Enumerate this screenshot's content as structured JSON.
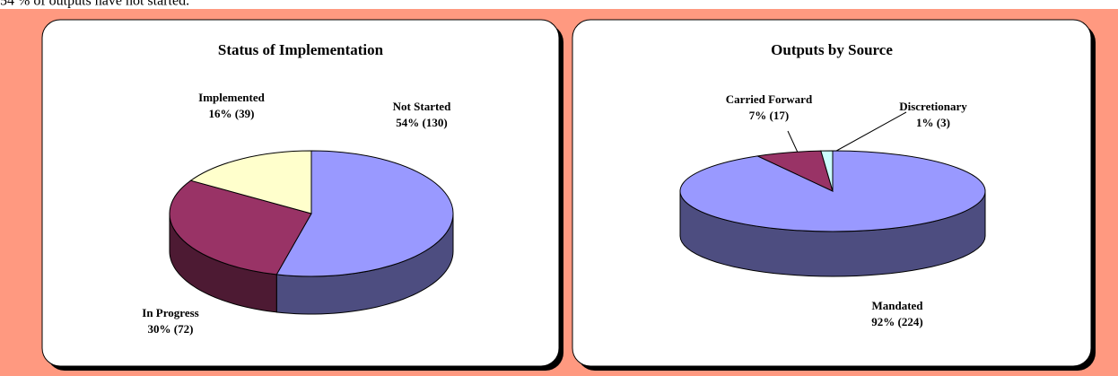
{
  "caption": "54 % of outputs have not started.",
  "chart_data": [
    {
      "type": "pie3d",
      "title": "Status of Implementation",
      "categories": [
        "Not Started",
        "In Progress",
        "Implemented"
      ],
      "values": [
        130,
        72,
        39
      ],
      "value_labels": [
        "54% (130)",
        "30% (72)",
        "16% (39)"
      ],
      "colors": [
        "#9999ff",
        "#993366",
        "#ffffcc"
      ]
    },
    {
      "type": "pie3d",
      "title": "Outputs by Source",
      "categories": [
        "Mandated",
        "Carried Forward",
        "Discretionary"
      ],
      "values": [
        224,
        17,
        3
      ],
      "value_labels": [
        "92% (224)",
        "7% (17)",
        "1% (3)"
      ],
      "colors": [
        "#9999ff",
        "#993366",
        "#ccffff"
      ]
    }
  ]
}
